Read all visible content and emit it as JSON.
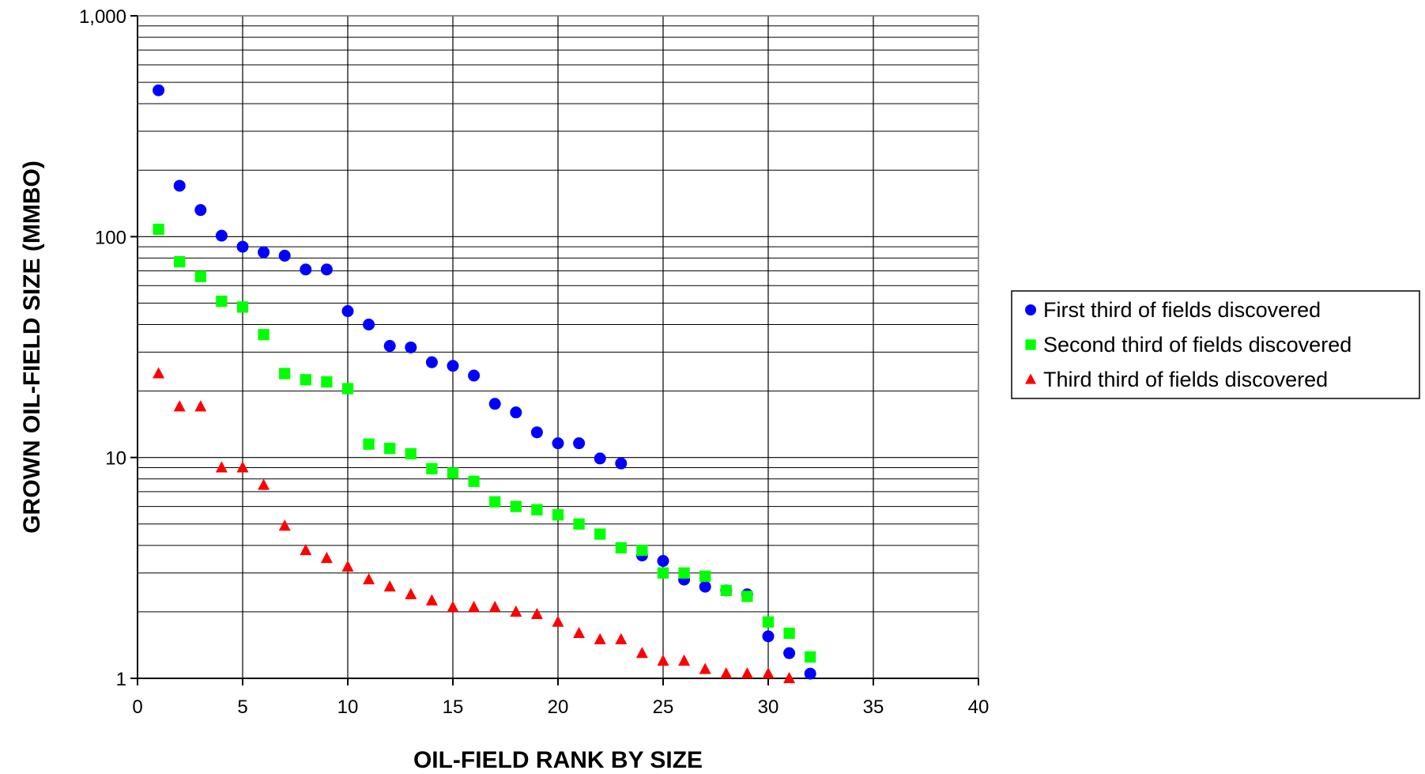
{
  "chart_data": {
    "type": "scatter",
    "title": "",
    "xlabel": "OIL-FIELD RANK BY SIZE",
    "ylabel": "GROWN OIL-FIELD SIZE (MMBO)",
    "xlim": [
      0,
      40
    ],
    "ylim": [
      1,
      1000
    ],
    "y_scale": "log",
    "x_ticks": [
      0,
      5,
      10,
      15,
      20,
      25,
      30,
      35,
      40
    ],
    "x_tick_labels": [
      "0",
      "5",
      "10",
      "15",
      "20",
      "25",
      "30",
      "35",
      "40"
    ],
    "y_ticks": [
      1,
      10,
      100,
      1000
    ],
    "y_tick_labels": [
      "1",
      "10",
      "100",
      "1,000"
    ],
    "grid": true,
    "legend_position": "right",
    "series": [
      {
        "name": "First third of fields discovered",
        "marker": "circle",
        "color": "#0000ff",
        "x": [
          1,
          2,
          3,
          4,
          5,
          6,
          7,
          8,
          9,
          10,
          11,
          12,
          13,
          14,
          15,
          16,
          17,
          18,
          19,
          20,
          21,
          22,
          23,
          24,
          25,
          26,
          27,
          28,
          29,
          30,
          31,
          32
        ],
        "y": [
          460,
          170,
          132,
          101,
          90,
          85,
          82,
          71,
          71,
          46,
          40,
          32,
          31.5,
          27,
          26,
          23.5,
          17.5,
          16,
          13,
          11.6,
          11.6,
          9.9,
          9.4,
          3.6,
          3.4,
          2.8,
          2.6,
          2.5,
          2.4,
          1.55,
          1.3,
          1.05
        ]
      },
      {
        "name": "Second third of fields discovered",
        "marker": "square",
        "color": "#00ff00",
        "x": [
          1,
          2,
          3,
          4,
          5,
          6,
          7,
          8,
          9,
          10,
          11,
          12,
          13,
          14,
          15,
          16,
          17,
          18,
          19,
          20,
          21,
          22,
          23,
          24,
          25,
          26,
          27,
          28,
          29,
          30,
          31,
          32
        ],
        "y": [
          108,
          77,
          66,
          51,
          48,
          36,
          24,
          22.5,
          22,
          20.5,
          11.5,
          11,
          10.4,
          8.9,
          8.5,
          7.8,
          6.3,
          6,
          5.8,
          5.5,
          5,
          4.5,
          3.9,
          3.8,
          3,
          3,
          2.9,
          2.5,
          2.35,
          1.8,
          1.6,
          1.25
        ]
      },
      {
        "name": "Third third of fields discovered",
        "marker": "triangle",
        "color": "#ff0000",
        "x": [
          1,
          2,
          3,
          4,
          5,
          6,
          7,
          8,
          9,
          10,
          11,
          12,
          13,
          14,
          15,
          16,
          17,
          18,
          19,
          20,
          21,
          22,
          23,
          24,
          25,
          26,
          27,
          28,
          29,
          30,
          31
        ],
        "y": [
          24,
          17,
          17,
          9,
          9,
          7.5,
          4.9,
          3.8,
          3.5,
          3.2,
          2.8,
          2.6,
          2.4,
          2.25,
          2.1,
          2.1,
          2.1,
          2,
          1.95,
          1.8,
          1.6,
          1.5,
          1.5,
          1.3,
          1.2,
          1.2,
          1.1,
          1.05,
          1.05,
          1.05,
          1
        ]
      }
    ]
  }
}
